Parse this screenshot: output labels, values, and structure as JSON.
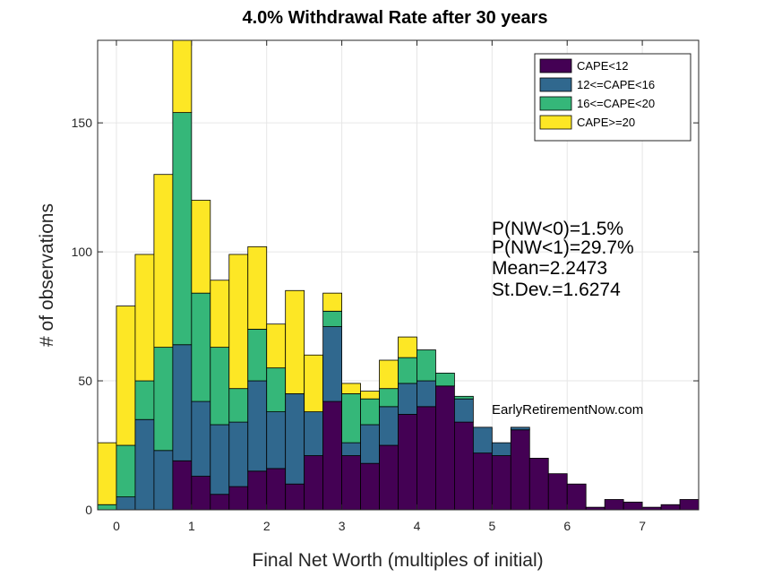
{
  "chart_data": {
    "type": "bar",
    "stacked": true,
    "title": "4.0% Withdrawal Rate after 30 years",
    "xlabel": "Final Net Worth (multiples of initial)",
    "ylabel": "# of observations",
    "xlim": [
      -0.25,
      7.75
    ],
    "ylim": [
      0,
      182
    ],
    "xticks": [
      0,
      1,
      2,
      3,
      4,
      5,
      6,
      7
    ],
    "yticks": [
      0,
      50,
      100,
      150
    ],
    "grid": true,
    "legend_position": "top-right",
    "bin_width": 0.25,
    "bin_centers": [
      -0.125,
      0.125,
      0.375,
      0.625,
      0.875,
      1.125,
      1.375,
      1.625,
      1.875,
      2.125,
      2.375,
      2.625,
      2.875,
      3.125,
      3.375,
      3.625,
      3.875,
      4.125,
      4.375,
      4.625,
      4.875,
      5.125,
      5.375,
      5.625,
      5.875,
      6.125,
      6.375,
      6.625,
      6.875,
      7.125,
      7.375,
      7.625
    ],
    "series": [
      {
        "name": "CAPE<12",
        "color": "#440154",
        "values": [
          0,
          0,
          0,
          0,
          19,
          13,
          6,
          9,
          15,
          16,
          10,
          21,
          42,
          21,
          18,
          25,
          37,
          40,
          48,
          34,
          22,
          21,
          31,
          20,
          14,
          10,
          1,
          4,
          3,
          1,
          2,
          4
        ]
      },
      {
        "name": "12<=CAPE<16",
        "color": "#30688e",
        "values": [
          0,
          5,
          35,
          23,
          45,
          29,
          27,
          25,
          35,
          22,
          35,
          17,
          29,
          5,
          15,
          15,
          12,
          10,
          0,
          9,
          10,
          5,
          1,
          0,
          0,
          0,
          0,
          0,
          0,
          0,
          0,
          0
        ]
      },
      {
        "name": "16<=CAPE<20",
        "color": "#35b779",
        "values": [
          2,
          20,
          15,
          40,
          90,
          42,
          30,
          13,
          20,
          17,
          0,
          0,
          6,
          19,
          10,
          7,
          10,
          12,
          5,
          1,
          0,
          0,
          0,
          0,
          0,
          0,
          0,
          0,
          0,
          0,
          0,
          0
        ]
      },
      {
        "name": "CAPE>=20",
        "color": "#fde725",
        "values": [
          24,
          54,
          49,
          67,
          28,
          36,
          26,
          52,
          32,
          17,
          40,
          22,
          7,
          4,
          3,
          11,
          8,
          0,
          0,
          0,
          0,
          0,
          0,
          0,
          0,
          0,
          0,
          0,
          0,
          0,
          0,
          0
        ]
      }
    ],
    "annotations": {
      "stats": [
        "P(NW<0)=1.5%",
        "P(NW<1)=29.7%",
        "Mean=2.2473",
        "St.Dev.=1.6274"
      ],
      "watermark": "EarlyRetirementNow.com"
    }
  }
}
